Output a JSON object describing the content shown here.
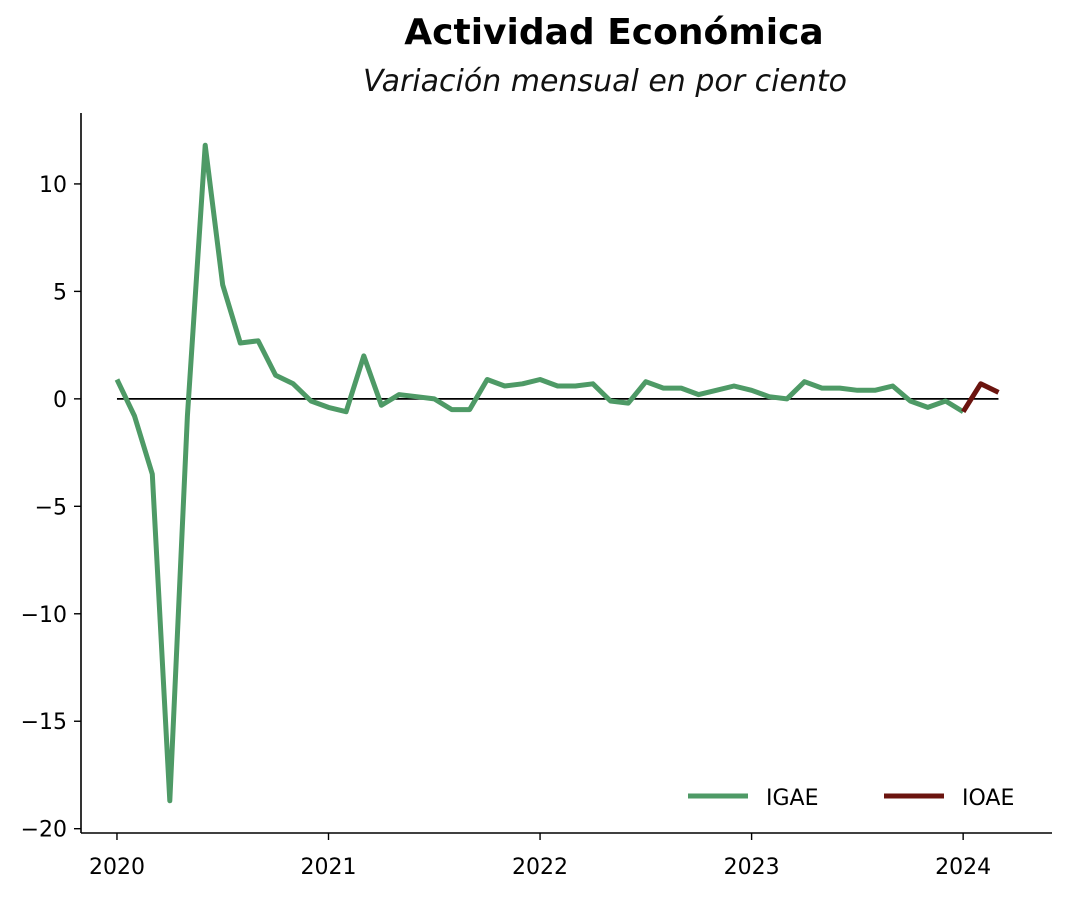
{
  "chart_data": {
    "type": "line",
    "title": "Actividad Económica",
    "subtitle": "Variación mensual en por ciento",
    "xlabel": "",
    "ylabel": "",
    "xlim": [
      2019.83,
      2024.42
    ],
    "ylim": [
      -20.2,
      13.3
    ],
    "x_ticks": [
      2020,
      2021,
      2022,
      2023,
      2024
    ],
    "x_tick_labels": [
      "2020",
      "2021",
      "2022",
      "2023",
      "2024"
    ],
    "y_ticks": [
      -20,
      -15,
      -10,
      -5,
      0,
      5,
      10
    ],
    "y_tick_labels": [
      "−20",
      "−15",
      "−10",
      "−5",
      "0",
      "5",
      "10"
    ],
    "reference_line": {
      "y": 0,
      "color": "#000000"
    },
    "legend_position": "bottom-right",
    "series": [
      {
        "name": "IGAE",
        "color": "#4e9a66",
        "x": [
          2020.0,
          2020.083,
          2020.167,
          2020.25,
          2020.333,
          2020.417,
          2020.5,
          2020.583,
          2020.667,
          2020.75,
          2020.833,
          2020.917,
          2021.0,
          2021.083,
          2021.167,
          2021.25,
          2021.333,
          2021.417,
          2021.5,
          2021.583,
          2021.667,
          2021.75,
          2021.833,
          2021.917,
          2022.0,
          2022.083,
          2022.167,
          2022.25,
          2022.333,
          2022.417,
          2022.5,
          2022.583,
          2022.667,
          2022.75,
          2022.833,
          2022.917,
          2023.0,
          2023.083,
          2023.167,
          2023.25,
          2023.333,
          2023.417,
          2023.5,
          2023.583,
          2023.667,
          2023.75,
          2023.833,
          2023.917,
          2024.0
        ],
        "values": [
          0.9,
          -0.8,
          -3.5,
          -18.7,
          -0.8,
          11.8,
          5.3,
          2.6,
          2.7,
          1.1,
          0.7,
          -0.1,
          -0.4,
          -0.6,
          2.0,
          -0.3,
          0.2,
          0.1,
          0.0,
          -0.5,
          -0.5,
          0.9,
          0.6,
          0.7,
          0.9,
          0.6,
          0.6,
          0.7,
          -0.1,
          -0.2,
          0.8,
          0.5,
          0.5,
          0.2,
          0.4,
          0.6,
          0.4,
          0.1,
          0.0,
          0.8,
          0.5,
          0.5,
          0.4,
          0.4,
          0.6,
          -0.1,
          -0.4,
          -0.1,
          -0.6
        ]
      },
      {
        "name": "IOAE",
        "color": "#6b140f",
        "x": [
          2024.0,
          2024.083,
          2024.167
        ],
        "values": [
          -0.6,
          0.7,
          0.3
        ]
      }
    ]
  }
}
